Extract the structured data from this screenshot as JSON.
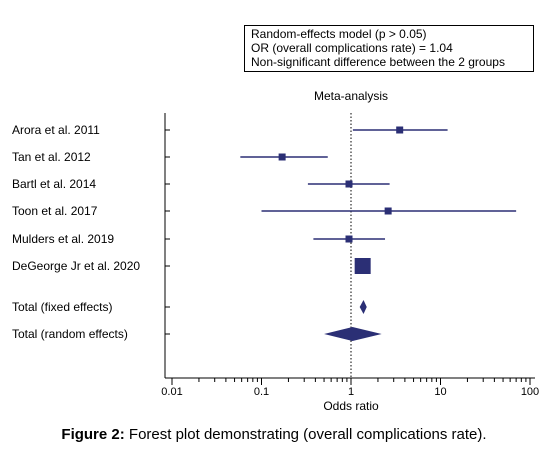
{
  "info_box": {
    "lines": [
      "Random-effects model (p > 0.05)",
      "OR (overall complications rate) = 1.04",
      "Non-significant difference between the 2 groups"
    ]
  },
  "caption": {
    "label": "Figure 2:",
    "text": " Forest plot demonstrating (overall complications rate)."
  },
  "chart_data": {
    "type": "forest",
    "title": "Meta-analysis",
    "xlabel": "Odds ratio",
    "xscale": "log",
    "xlim": [
      0.01,
      100
    ],
    "xticks": [
      "0.01",
      "0.1",
      "1",
      "10",
      "100"
    ],
    "reference_line": 1,
    "studies": [
      {
        "label": "Arora et al. 2011",
        "or": 3.5,
        "lo": 1.05,
        "hi": 12
      },
      {
        "label": "Tan et al. 2012",
        "or": 0.17,
        "lo": 0.058,
        "hi": 0.55
      },
      {
        "label": "Bartl et al. 2014",
        "or": 0.95,
        "lo": 0.33,
        "hi": 2.7
      },
      {
        "label": "Toon et al. 2017",
        "or": 2.6,
        "lo": 0.1,
        "hi": 70
      },
      {
        "label": "Mulders et al. 2019",
        "or": 0.95,
        "lo": 0.38,
        "hi": 2.4
      },
      {
        "label": "DeGeorge Jr et al. 2020",
        "or": 1.35,
        "lo": 1.35,
        "hi": 1.35,
        "weight": "large"
      }
    ],
    "totals": [
      {
        "label": "Total (fixed effects)",
        "or": 1.38,
        "lo": 1.25,
        "hi": 1.5
      },
      {
        "label": "Total (random effects)",
        "or": 1.04,
        "lo": 0.5,
        "hi": 2.2
      }
    ],
    "color": "#2b2f75"
  }
}
